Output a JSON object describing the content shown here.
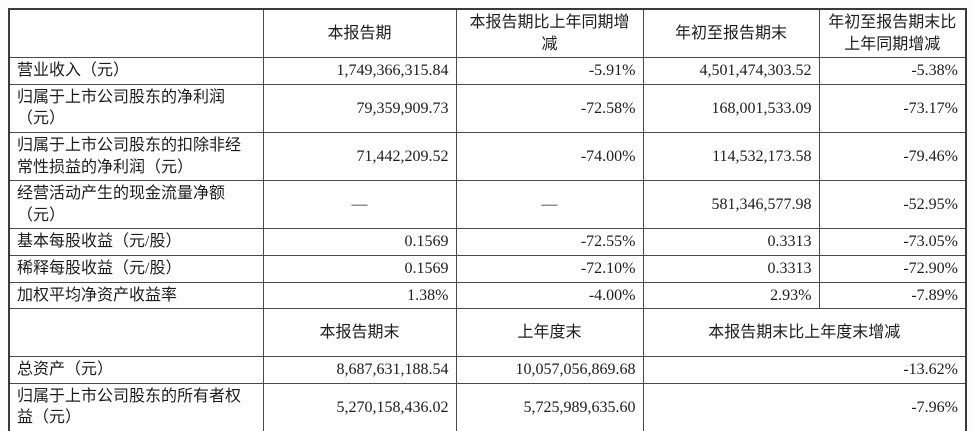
{
  "colors": {
    "header_bg": "#d9d9d9",
    "cell_bg": "#ffffff",
    "border": "#4a4a4a",
    "text": "#1c1c1c"
  },
  "table": {
    "header1": {
      "col1": "",
      "col2": "本报告期",
      "col3": "本报告期比上年同期增减",
      "col4": "年初至报告期末",
      "col5": "年初至报告期末比上年同期增减"
    },
    "rows1": [
      {
        "label": "营业收入（元）",
        "current": "1,749,366,315.84",
        "current_change": "-5.91%",
        "ytd": "4,501,474,303.52",
        "ytd_change": "-5.38%"
      },
      {
        "label": "归属于上市公司股东的净利润（元）",
        "current": "79,359,909.73",
        "current_change": "-72.58%",
        "ytd": "168,001,533.09",
        "ytd_change": "-73.17%"
      },
      {
        "label": "归属于上市公司股东的扣除非经常性损益的净利润（元）",
        "current": "71,442,209.52",
        "current_change": "-74.00%",
        "ytd": "114,532,173.58",
        "ytd_change": "-79.46%"
      },
      {
        "label": "经营活动产生的现金流量净额（元）",
        "current": "—",
        "current_change": "—",
        "ytd": "581,346,577.98",
        "ytd_change": "-52.95%"
      },
      {
        "label": "基本每股收益（元/股）",
        "current": "0.1569",
        "current_change": "-72.55%",
        "ytd": "0.3313",
        "ytd_change": "-73.05%"
      },
      {
        "label": "稀释每股收益（元/股）",
        "current": "0.1569",
        "current_change": "-72.10%",
        "ytd": "0.3313",
        "ytd_change": "-72.90%"
      },
      {
        "label": "加权平均净资产收益率",
        "current": "1.38%",
        "current_change": "-4.00%",
        "ytd": "2.93%",
        "ytd_change": "-7.89%"
      }
    ],
    "header2": {
      "col1": "",
      "col2": "本报告期末",
      "col3": "上年度末",
      "col45": "本报告期末比上年度末增减"
    },
    "rows2": [
      {
        "label": "总资产（元）",
        "end_of_period": "8,687,631,188.54",
        "end_of_prev_year": "10,057,056,869.68",
        "change": "-13.62%"
      },
      {
        "label": "归属于上市公司股东的所有者权益（元）",
        "end_of_period": "5,270,158,436.02",
        "end_of_prev_year": "5,725,989,635.60",
        "change": "-7.96%"
      }
    ]
  }
}
